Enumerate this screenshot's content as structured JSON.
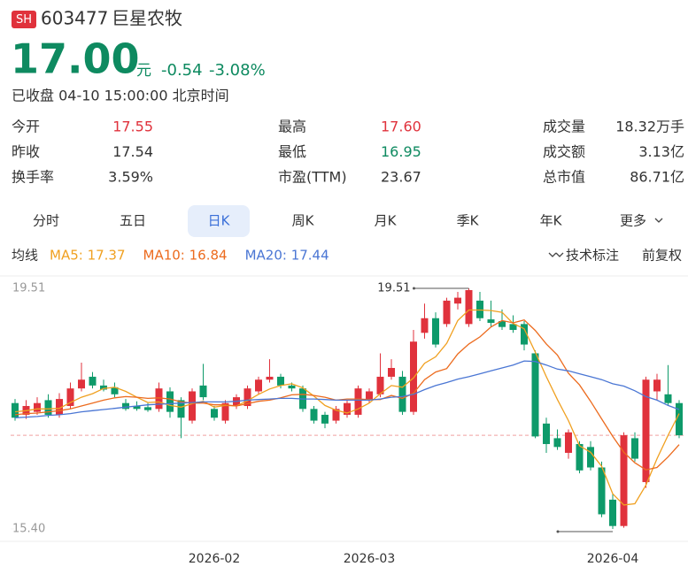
{
  "header": {
    "badge": "SH",
    "code": "603477",
    "name": "巨星农牧",
    "price": "17.00",
    "unit": "元",
    "change": "-0.54",
    "change_pct": "-3.08%",
    "status": "已收盘 04-10 15:00:00 北京时间",
    "color": "#0e8a60"
  },
  "stats": [
    {
      "label": "今开",
      "value": "17.55",
      "color": "#e0323c"
    },
    {
      "label": "最高",
      "value": "17.60",
      "color": "#e0323c"
    },
    {
      "label": "成交量",
      "value": "18.32万手",
      "color": "#333333"
    },
    {
      "label": "昨收",
      "value": "17.54",
      "color": "#333333"
    },
    {
      "label": "最低",
      "value": "16.95",
      "color": "#0e8a60"
    },
    {
      "label": "成交额",
      "value": "3.13亿",
      "color": "#333333"
    },
    {
      "label": "换手率",
      "value": "3.59%",
      "color": "#333333"
    },
    {
      "label": "市盈(TTM)",
      "value": "23.67",
      "color": "#333333"
    },
    {
      "label": "总市值",
      "value": "86.71亿",
      "color": "#333333"
    }
  ],
  "tabs": {
    "items": [
      "分时",
      "五日",
      "日K",
      "周K",
      "月K",
      "季K",
      "年K",
      "更多"
    ],
    "active_index": 2
  },
  "toolbar": {
    "ma_label": "均线",
    "annotate": "技术标注",
    "adjust": "前复权"
  },
  "chart_data": {
    "type": "candlestick",
    "categories": [
      null,
      null,
      null,
      null,
      null,
      null,
      null,
      null,
      null,
      null,
      null,
      null,
      null,
      null,
      null,
      null,
      null,
      null,
      "2026-02",
      null,
      null,
      null,
      null,
      null,
      null,
      null,
      null,
      null,
      null,
      null,
      null,
      null,
      "2026-03",
      null,
      null,
      null,
      null,
      null,
      null,
      null,
      null,
      null,
      null,
      null,
      null,
      null,
      null,
      null,
      null,
      null,
      null,
      null,
      null,
      null,
      "2026-04",
      null,
      null,
      null,
      null,
      null,
      null
    ],
    "open": [
      17.55,
      17.35,
      17.4,
      17.6,
      17.35,
      17.5,
      17.8,
      18.0,
      17.85,
      17.82,
      17.55,
      17.5,
      17.48,
      17.45,
      17.75,
      17.6,
      17.25,
      17.85,
      17.45,
      17.25,
      17.5,
      17.5,
      17.75,
      17.95,
      18.0,
      17.85,
      17.8,
      17.45,
      17.35,
      17.25,
      17.35,
      17.35,
      17.6,
      17.7,
      18.0,
      18.0,
      17.4,
      18.75,
      19.0,
      18.9,
      19.25,
      18.9,
      19.3,
      18.98,
      18.95,
      18.9,
      18.9,
      18.4,
      17.2,
      16.95,
      16.7,
      16.85,
      16.8,
      16.45,
      15.9,
      15.45,
      16.95,
      16.2,
      17.75,
      17.7,
      17.55
    ],
    "high": [
      17.62,
      17.6,
      17.65,
      17.7,
      17.72,
      17.9,
      18.24,
      18.08,
      17.95,
      17.9,
      17.62,
      17.58,
      17.55,
      17.9,
      17.82,
      17.65,
      17.8,
      18.22,
      17.5,
      17.6,
      17.7,
      17.85,
      18.0,
      18.3,
      18.05,
      17.9,
      17.85,
      17.5,
      17.4,
      17.5,
      17.6,
      17.85,
      17.8,
      18.4,
      18.3,
      18.1,
      18.8,
      19.25,
      19.1,
      19.35,
      19.45,
      19.51,
      19.45,
      19.3,
      19.15,
      19.05,
      18.95,
      18.45,
      17.3,
      17.1,
      17.1,
      16.9,
      16.9,
      16.55,
      16.0,
      17.05,
      17.05,
      18.0,
      18.05,
      18.2,
      17.6
    ],
    "low": [
      17.25,
      17.28,
      17.35,
      17.3,
      17.3,
      17.45,
      17.75,
      17.8,
      17.75,
      17.65,
      17.42,
      17.42,
      17.4,
      17.4,
      17.3,
      16.95,
      17.2,
      17.6,
      17.25,
      17.2,
      17.45,
      17.45,
      17.7,
      17.9,
      17.8,
      17.75,
      17.4,
      17.2,
      17.12,
      17.2,
      17.3,
      17.3,
      17.55,
      17.65,
      17.95,
      17.35,
      17.35,
      18.65,
      18.5,
      18.85,
      19.15,
      18.85,
      18.95,
      18.85,
      18.8,
      18.75,
      18.45,
      16.95,
      16.7,
      16.75,
      16.6,
      16.35,
      16.4,
      15.6,
      15.4,
      15.42,
      16.55,
      16.1,
      17.6,
      17.5,
      16.95
    ],
    "close": [
      17.3,
      17.5,
      17.55,
      17.35,
      17.62,
      17.8,
      17.95,
      17.85,
      17.78,
      17.7,
      17.45,
      17.45,
      17.43,
      17.8,
      17.4,
      17.3,
      17.75,
      17.65,
      17.3,
      17.55,
      17.65,
      17.8,
      17.95,
      18.0,
      17.85,
      17.8,
      17.45,
      17.25,
      17.2,
      17.45,
      17.55,
      17.8,
      17.75,
      18.0,
      18.15,
      17.4,
      18.6,
      19.0,
      18.55,
      19.3,
      19.35,
      19.48,
      19.0,
      18.92,
      18.85,
      18.8,
      18.55,
      16.98,
      16.85,
      16.8,
      17.05,
      16.4,
      16.45,
      15.65,
      15.45,
      17.0,
      16.6,
      17.95,
      17.95,
      17.55,
      17.0
    ],
    "up_color": "#e0323c",
    "down_color": "#0e9a6a",
    "series": [
      {
        "name": "MA5: 17.37",
        "color": "#f0a020",
        "values": [
          17.4,
          17.42,
          17.45,
          17.45,
          17.46,
          17.56,
          17.65,
          17.71,
          17.8,
          17.82,
          17.75,
          17.65,
          17.56,
          17.57,
          17.51,
          17.48,
          17.54,
          17.58,
          17.48,
          17.51,
          17.5,
          17.59,
          17.7,
          17.79,
          17.85,
          17.88,
          17.81,
          17.67,
          17.51,
          17.43,
          17.38,
          17.45,
          17.55,
          17.71,
          17.85,
          17.82,
          17.98,
          18.23,
          18.34,
          18.57,
          18.96,
          19.14,
          19.14,
          19.13,
          19.1,
          18.91,
          18.82,
          18.42,
          18.0,
          17.61,
          17.25,
          16.82,
          16.71,
          16.47,
          16.0,
          15.81,
          15.83,
          16.15,
          16.6,
          17.0,
          17.37
        ]
      },
      {
        "name": "MA10: 16.84",
        "color": "#ec6b1e",
        "values": [
          17.35,
          17.37,
          17.38,
          17.4,
          17.42,
          17.45,
          17.5,
          17.55,
          17.6,
          17.64,
          17.66,
          17.65,
          17.63,
          17.64,
          17.62,
          17.57,
          17.55,
          17.55,
          17.52,
          17.52,
          17.5,
          17.54,
          17.58,
          17.6,
          17.64,
          17.69,
          17.7,
          17.68,
          17.65,
          17.6,
          17.62,
          17.62,
          17.61,
          17.61,
          17.68,
          17.63,
          17.72,
          17.95,
          18.08,
          18.14,
          18.39,
          18.56,
          18.68,
          18.85,
          18.96,
          18.92,
          18.97,
          18.79,
          18.56,
          18.37,
          18.06,
          17.86,
          17.58,
          17.28,
          16.98,
          16.71,
          16.53,
          16.41,
          16.45,
          16.63,
          16.84
        ]
      },
      {
        "name": "MA20: 17.44",
        "color": "#4a76d4",
        "values": [
          17.3,
          17.31,
          17.32,
          17.34,
          17.35,
          17.37,
          17.4,
          17.42,
          17.44,
          17.46,
          17.48,
          17.5,
          17.52,
          17.53,
          17.54,
          17.55,
          17.56,
          17.57,
          17.57,
          17.57,
          17.58,
          17.6,
          17.61,
          17.62,
          17.63,
          17.63,
          17.62,
          17.62,
          17.61,
          17.6,
          17.6,
          17.6,
          17.6,
          17.62,
          17.65,
          17.66,
          17.7,
          17.78,
          17.85,
          17.9,
          17.96,
          18.0,
          18.05,
          18.1,
          18.15,
          18.2,
          18.27,
          18.26,
          18.2,
          18.13,
          18.1,
          18.05,
          18.0,
          17.95,
          17.88,
          17.84,
          17.76,
          17.66,
          17.6,
          17.51,
          17.44
        ]
      }
    ],
    "ylim": [
      15.4,
      19.51
    ],
    "yticks": [
      19.51,
      {
        "value": 15.4,
        "label": "15.40"
      }
    ],
    "high_annotation": {
      "index": 41,
      "value": 19.51
    },
    "low_annotation": {
      "index": 54,
      "value": 15.4
    },
    "price_line": 17
  }
}
